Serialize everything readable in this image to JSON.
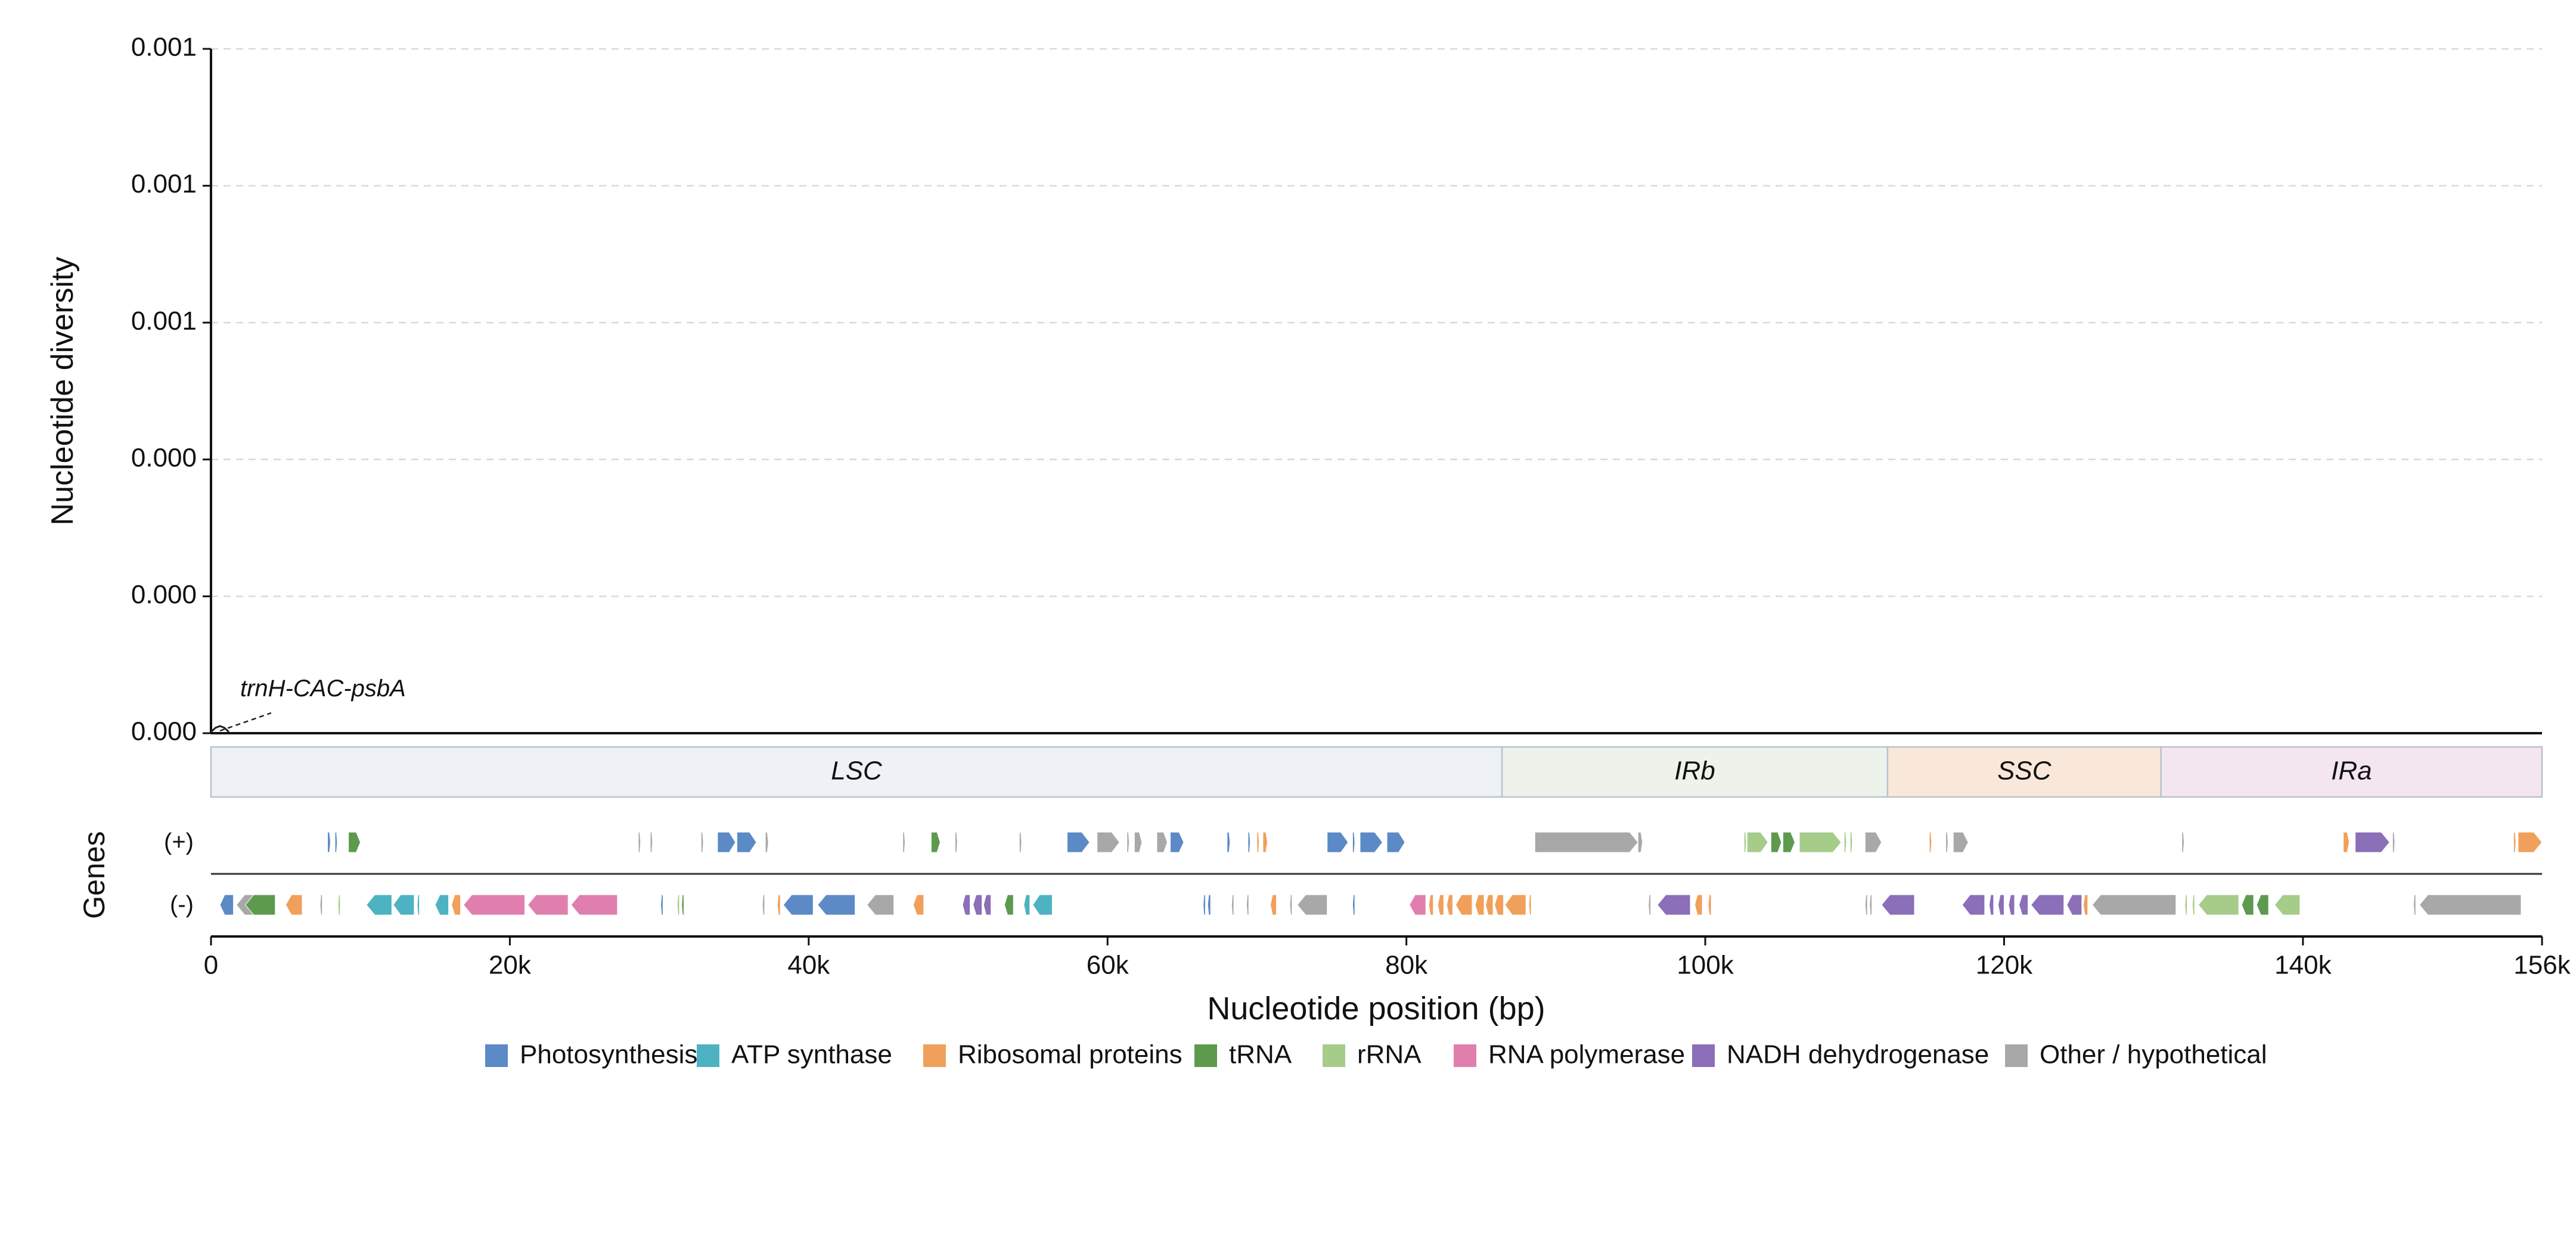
{
  "chart_data": {
    "type": "line",
    "ylabel": "Nucleotide diversity",
    "xlabel": "Nucleotide position (bp)",
    "genes_label": "Genes",
    "y_tick_labels": [
      "0.000",
      "0.000",
      "0.000",
      "0.001",
      "0.001",
      "0.001"
    ],
    "x_ticks": [
      0,
      20000,
      40000,
      60000,
      80000,
      100000,
      120000,
      140000,
      156000
    ],
    "x_tick_labels": [
      "0",
      "20k",
      "40k",
      "60k",
      "80k",
      "100k",
      "120k",
      "140k",
      "156k"
    ],
    "xlim": [
      0,
      156000
    ],
    "grid": true,
    "series": [
      {
        "x": [
          0,
          300,
          600,
          900,
          1200
        ],
        "values": [
          0,
          0,
          0,
          0,
          0
        ]
      }
    ],
    "annotations": [
      {
        "text": "trnH-CAC-psbA",
        "x": 600,
        "y": 0
      }
    ],
    "regions": [
      {
        "name": "LSC",
        "start": 0,
        "end": 86400,
        "color": "#eef2f6"
      },
      {
        "name": "IRb",
        "start": 86400,
        "end": 112200,
        "color": "#edf3ea"
      },
      {
        "name": "SSC",
        "start": 112200,
        "end": 130500,
        "color": "#f9e8da"
      },
      {
        "name": "IRa",
        "start": 130500,
        "end": 156000,
        "color": "#f3e6f1"
      }
    ],
    "strand_labels": {
      "plus": "(+)",
      "minus": "(-)"
    },
    "legend": {
      "placement": "bottom",
      "items": [
        {
          "name": "Photosynthesis",
          "color": "#5b8ac6"
        },
        {
          "name": "ATP synthase",
          "color": "#4db3c2"
        },
        {
          "name": "Ribosomal proteins",
          "color": "#f0a05a"
        },
        {
          "name": "tRNA",
          "color": "#5d9a4e"
        },
        {
          "name": "rRNA",
          "color": "#a6cc8a"
        },
        {
          "name": "RNA polymerase",
          "color": "#e07fae"
        },
        {
          "name": "NADH dehydrogenase",
          "color": "#8b6fb8"
        },
        {
          "name": "Other / hypothetical",
          "color": "#a8a8a8"
        }
      ]
    },
    "genes_plus": [
      {
        "s": 7800,
        "e": 8000,
        "c": 0
      },
      {
        "s": 8300,
        "e": 8450,
        "c": 0
      },
      {
        "s": 9200,
        "e": 10000,
        "c": 3
      },
      {
        "s": 28600,
        "e": 28750,
        "c": 7
      },
      {
        "s": 29400,
        "e": 29550,
        "c": 7
      },
      {
        "s": 32800,
        "e": 32950,
        "c": 7
      },
      {
        "s": 33900,
        "e": 35100,
        "c": 0
      },
      {
        "s": 35200,
        "e": 36500,
        "c": 0
      },
      {
        "s": 37100,
        "e": 37300,
        "c": 7
      },
      {
        "s": 46300,
        "e": 46450,
        "c": 7
      },
      {
        "s": 48200,
        "e": 48800,
        "c": 3
      },
      {
        "s": 49800,
        "e": 49950,
        "c": 7
      },
      {
        "s": 54100,
        "e": 54250,
        "c": 7
      },
      {
        "s": 57300,
        "e": 58800,
        "c": 0
      },
      {
        "s": 59300,
        "e": 60800,
        "c": 7
      },
      {
        "s": 61300,
        "e": 61450,
        "c": 7
      },
      {
        "s": 61800,
        "e": 62300,
        "c": 7
      },
      {
        "s": 63300,
        "e": 64000,
        "c": 7
      },
      {
        "s": 64200,
        "e": 65100,
        "c": 0
      },
      {
        "s": 68000,
        "e": 68200,
        "c": 0
      },
      {
        "s": 69400,
        "e": 69550,
        "c": 0
      },
      {
        "s": 70000,
        "e": 70150,
        "c": 2
      },
      {
        "s": 70400,
        "e": 70700,
        "c": 2
      },
      {
        "s": 74700,
        "e": 76100,
        "c": 0
      },
      {
        "s": 76400,
        "e": 76550,
        "c": 0
      },
      {
        "s": 76900,
        "e": 78400,
        "c": 0
      },
      {
        "s": 78700,
        "e": 79900,
        "c": 0
      },
      {
        "s": 88600,
        "e": 95500,
        "c": 7
      },
      {
        "s": 95500,
        "e": 95800,
        "c": 7
      },
      {
        "s": 102600,
        "e": 102750,
        "c": 4
      },
      {
        "s": 102800,
        "e": 104200,
        "c": 4
      },
      {
        "s": 104400,
        "e": 105100,
        "c": 3
      },
      {
        "s": 105200,
        "e": 106000,
        "c": 3
      },
      {
        "s": 106300,
        "e": 109100,
        "c": 4
      },
      {
        "s": 109300,
        "e": 109450,
        "c": 4
      },
      {
        "s": 109700,
        "e": 109850,
        "c": 4
      },
      {
        "s": 110700,
        "e": 111800,
        "c": 7
      },
      {
        "s": 115000,
        "e": 115150,
        "c": 2
      },
      {
        "s": 116100,
        "e": 116250,
        "c": 7
      },
      {
        "s": 116600,
        "e": 117600,
        "c": 7
      },
      {
        "s": 131900,
        "e": 132050,
        "c": 7
      },
      {
        "s": 142700,
        "e": 143100,
        "c": 2
      },
      {
        "s": 143500,
        "e": 145800,
        "c": 6
      },
      {
        "s": 146000,
        "e": 146150,
        "c": 7
      },
      {
        "s": 154100,
        "e": 154250,
        "c": 2
      },
      {
        "s": 154400,
        "e": 156000,
        "c": 2
      }
    ],
    "genes_minus": [
      {
        "s": 600,
        "e": 1500,
        "c": 0
      },
      {
        "s": 1700,
        "e": 4300,
        "c": 7
      },
      {
        "s": 2300,
        "e": 4300,
        "c": 3
      },
      {
        "s": 5000,
        "e": 6100,
        "c": 2
      },
      {
        "s": 7300,
        "e": 7450,
        "c": 7
      },
      {
        "s": 8500,
        "e": 8650,
        "c": 4
      },
      {
        "s": 10400,
        "e": 12100,
        "c": 1
      },
      {
        "s": 12200,
        "e": 13600,
        "c": 1
      },
      {
        "s": 13800,
        "e": 13950,
        "c": 1
      },
      {
        "s": 15000,
        "e": 15900,
        "c": 1
      },
      {
        "s": 16100,
        "e": 16700,
        "c": 2
      },
      {
        "s": 16900,
        "e": 21000,
        "c": 5
      },
      {
        "s": 21200,
        "e": 23900,
        "c": 5
      },
      {
        "s": 24100,
        "e": 27200,
        "c": 5
      },
      {
        "s": 30100,
        "e": 30250,
        "c": 0
      },
      {
        "s": 31200,
        "e": 31350,
        "c": 4
      },
      {
        "s": 31500,
        "e": 31650,
        "c": 3
      },
      {
        "s": 36900,
        "e": 37050,
        "c": 7
      },
      {
        "s": 37900,
        "e": 38100,
        "c": 2
      },
      {
        "s": 38300,
        "e": 40300,
        "c": 0
      },
      {
        "s": 40600,
        "e": 43100,
        "c": 0
      },
      {
        "s": 43900,
        "e": 45700,
        "c": 7
      },
      {
        "s": 47000,
        "e": 47700,
        "c": 2
      },
      {
        "s": 50300,
        "e": 50800,
        "c": 6
      },
      {
        "s": 51000,
        "e": 51600,
        "c": 6
      },
      {
        "s": 51700,
        "e": 52200,
        "c": 6
      },
      {
        "s": 53100,
        "e": 53700,
        "c": 3
      },
      {
        "s": 54400,
        "e": 54800,
        "c": 1
      },
      {
        "s": 55000,
        "e": 56300,
        "c": 1
      },
      {
        "s": 66400,
        "e": 66550,
        "c": 0
      },
      {
        "s": 66700,
        "e": 66900,
        "c": 0
      },
      {
        "s": 68300,
        "e": 68450,
        "c": 7
      },
      {
        "s": 69300,
        "e": 69450,
        "c": 7
      },
      {
        "s": 70900,
        "e": 71300,
        "c": 2
      },
      {
        "s": 72200,
        "e": 72350,
        "c": 7
      },
      {
        "s": 72700,
        "e": 74700,
        "c": 7
      },
      {
        "s": 76400,
        "e": 76550,
        "c": 0
      },
      {
        "s": 80200,
        "e": 81300,
        "c": 5
      },
      {
        "s": 81500,
        "e": 81800,
        "c": 2
      },
      {
        "s": 82100,
        "e": 82500,
        "c": 2
      },
      {
        "s": 82700,
        "e": 83100,
        "c": 2
      },
      {
        "s": 83300,
        "e": 84400,
        "c": 2
      },
      {
        "s": 84600,
        "e": 85200,
        "c": 2
      },
      {
        "s": 85300,
        "e": 85800,
        "c": 2
      },
      {
        "s": 85900,
        "e": 86500,
        "c": 2
      },
      {
        "s": 86600,
        "e": 88000,
        "c": 2
      },
      {
        "s": 88200,
        "e": 88350,
        "c": 2
      },
      {
        "s": 96200,
        "e": 96350,
        "c": 7
      },
      {
        "s": 96800,
        "e": 99000,
        "c": 6
      },
      {
        "s": 99300,
        "e": 99800,
        "c": 2
      },
      {
        "s": 100200,
        "e": 100400,
        "c": 2
      },
      {
        "s": 110700,
        "e": 110850,
        "c": 7
      },
      {
        "s": 111000,
        "e": 111150,
        "c": 7
      },
      {
        "s": 111800,
        "e": 114000,
        "c": 6
      },
      {
        "s": 117200,
        "e": 118700,
        "c": 6
      },
      {
        "s": 119000,
        "e": 119300,
        "c": 6
      },
      {
        "s": 119600,
        "e": 120000,
        "c": 6
      },
      {
        "s": 120300,
        "e": 120700,
        "c": 6
      },
      {
        "s": 121000,
        "e": 121600,
        "c": 6
      },
      {
        "s": 121800,
        "e": 124000,
        "c": 6
      },
      {
        "s": 124200,
        "e": 125200,
        "c": 6
      },
      {
        "s": 125300,
        "e": 125600,
        "c": 2
      },
      {
        "s": 125900,
        "e": 131500,
        "c": 7
      },
      {
        "s": 132100,
        "e": 132250,
        "c": 4
      },
      {
        "s": 132600,
        "e": 132750,
        "c": 4
      },
      {
        "s": 133000,
        "e": 135700,
        "c": 4
      },
      {
        "s": 135900,
        "e": 136700,
        "c": 3
      },
      {
        "s": 136900,
        "e": 137700,
        "c": 3
      },
      {
        "s": 138100,
        "e": 139800,
        "c": 4
      },
      {
        "s": 147400,
        "e": 147550,
        "c": 7
      },
      {
        "s": 147800,
        "e": 154600,
        "c": 7
      }
    ]
  }
}
